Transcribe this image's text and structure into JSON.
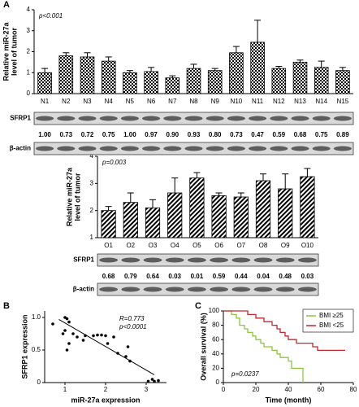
{
  "panels": [
    "A",
    "B",
    "C"
  ],
  "chart_data": [
    {
      "type": "bar",
      "fill_pattern": "checkered",
      "y_label": [
        "Relative miR-27a",
        "level of tumor"
      ],
      "annotation": "p<0.001",
      "categories": [
        "N1",
        "N2",
        "N3",
        "N4",
        "N5",
        "N6",
        "N7",
        "N8",
        "N9",
        "N10",
        "N11",
        "N12",
        "N13",
        "N14",
        "N15"
      ],
      "values": [
        1.0,
        1.8,
        1.75,
        1.55,
        1.0,
        1.05,
        0.75,
        1.2,
        1.1,
        1.95,
        2.45,
        1.2,
        1.5,
        1.25,
        1.1
      ],
      "errors": [
        0.2,
        0.15,
        0.2,
        0.2,
        0.1,
        0.2,
        0.1,
        0.2,
        0.1,
        0.3,
        1.05,
        0.1,
        0.1,
        0.3,
        0.15
      ],
      "ylim": [
        0,
        4
      ],
      "yticks": [
        0,
        1,
        2,
        3,
        4
      ]
    },
    {
      "type": "bar",
      "fill_pattern": "hatched",
      "y_label": [
        "Relative miR-27a",
        "level of tumor"
      ],
      "annotation": "p=0.003",
      "categories": [
        "O1",
        "O2",
        "O3",
        "O4",
        "O5",
        "O6",
        "O7",
        "O8",
        "O9",
        "O10"
      ],
      "values": [
        2.0,
        2.3,
        2.1,
        2.65,
        3.2,
        2.55,
        2.5,
        3.1,
        2.8,
        3.25
      ],
      "errors": [
        0.15,
        0.35,
        0.3,
        0.55,
        0.2,
        0.1,
        0.15,
        0.25,
        0.55,
        0.3
      ],
      "ylim": [
        1,
        4
      ],
      "yticks": [
        1,
        2,
        3,
        4
      ]
    },
    {
      "type": "scatter",
      "x_label": "miR-27a expression",
      "y_label": [
        "SFRP1 expression"
      ],
      "annotations": [
        "R=0.773",
        "p<0.0001"
      ],
      "x": [
        0.7,
        1.0,
        1.05,
        1.1,
        1.0,
        0.95,
        1.2,
        1.3,
        1.1,
        1.05,
        1.45,
        1.5,
        1.7,
        1.8,
        1.9,
        2.0,
        2.05,
        2.2,
        2.3,
        2.5,
        2.55,
        2.6,
        3.05,
        3.2,
        3.3,
        3.15
      ],
      "values": [
        0.9,
        1.0,
        0.98,
        0.93,
        0.8,
        0.75,
        0.75,
        0.7,
        0.6,
        0.5,
        0.65,
        0.72,
        0.72,
        0.73,
        0.73,
        0.72,
        0.6,
        0.7,
        0.45,
        0.4,
        0.55,
        0.33,
        0.02,
        0.02,
        0.03,
        0.05
      ],
      "fit": {
        "x": [
          0.85,
          3.2
        ],
        "y": [
          0.97,
          0.12
        ]
      },
      "xlim": [
        0.5,
        3.5
      ],
      "xticks": [
        1,
        2,
        3
      ],
      "ylim": [
        0,
        1.1
      ],
      "yticks": [
        0,
        0.5,
        {
          "value": 1,
          "label": "1.0"
        }
      ]
    },
    {
      "type": "line",
      "step": true,
      "x_label": "Time (month)",
      "y_label": [
        "Overall survival (%)"
      ],
      "annotation": "p=0.0237",
      "legend": "top-right",
      "series": [
        {
          "name": "BMI ≥25",
          "color": "#8dc63f",
          "x": [
            0,
            5,
            8,
            10,
            13,
            15,
            18,
            20,
            23,
            25,
            30,
            33,
            35,
            40,
            42,
            48,
            49
          ],
          "values": [
            100,
            95,
            90,
            80,
            75,
            70,
            65,
            60,
            55,
            50,
            45,
            40,
            35,
            30,
            20,
            20,
            0
          ]
        },
        {
          "name": "BMI <25",
          "color": "#c1272d",
          "x": [
            0,
            10,
            15,
            20,
            25,
            30,
            33,
            35,
            38,
            40,
            45,
            55,
            58,
            75
          ],
          "values": [
            100,
            100,
            95,
            90,
            85,
            80,
            75,
            70,
            65,
            60,
            55,
            50,
            45,
            45
          ]
        }
      ],
      "xlim": [
        0,
        80
      ],
      "xticks": [
        0,
        20,
        40,
        60,
        80
      ],
      "ylim": [
        0,
        100
      ],
      "yticks": [
        0,
        20,
        40,
        60,
        80,
        100
      ]
    }
  ],
  "blots": [
    {
      "labels": [
        "SFRP1",
        "β-actin"
      ],
      "ratios": [
        "1.00",
        "0.73",
        "0.72",
        "0.75",
        "1.00",
        "0.97",
        "0.90",
        "0.93",
        "0.80",
        "0.73",
        "0.47",
        "0.59",
        "0.68",
        "0.75",
        "0.89"
      ]
    },
    {
      "labels": [
        "SFRP1",
        "β-actin"
      ],
      "ratios": [
        "0.68",
        "0.79",
        "0.64",
        "0.03",
        "0.01",
        "0.59",
        "0.44",
        "0.04",
        "0.48",
        "0.03"
      ]
    }
  ]
}
